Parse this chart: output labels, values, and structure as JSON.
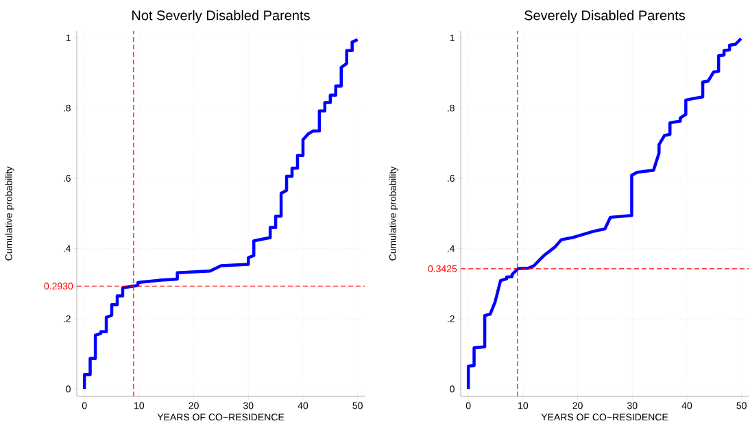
{
  "chart_data": [
    {
      "type": "line",
      "title": "Not Severly Disabled Parents",
      "xlabel": "YEARS OF CO−RESIDENCE",
      "ylabel": "Cumulative probability",
      "xlim": [
        -1.4,
        51.3
      ],
      "xticks": [
        0,
        10,
        20,
        30,
        40,
        50
      ],
      "ylim": [
        -0.021,
        1.02
      ],
      "yticks": [
        0,
        {
          "value": 0.2,
          "label": ".2"
        },
        {
          "value": 0.4,
          "label": ".4"
        },
        {
          "value": 0.6,
          "label": ".6"
        },
        {
          "value": 0.8,
          "label": ".8"
        },
        1
      ],
      "grid": true,
      "series": [
        {
          "color": "#0000ff",
          "x": [
            0,
            0,
            1.05,
            1.05,
            2.0,
            2.0,
            3.0,
            3.0,
            4.0,
            4.0,
            5.0,
            5.0,
            6.0,
            6.0,
            7.0,
            7.0,
            9.8,
            9.8,
            14,
            17,
            17,
            23,
            25,
            30,
            30,
            31,
            31,
            34,
            34,
            35,
            35,
            36,
            36,
            37,
            37,
            38,
            38,
            39,
            39,
            40,
            40,
            41,
            41.9,
            43,
            43,
            44,
            44,
            45,
            45,
            46,
            46,
            47,
            47,
            48,
            48,
            49,
            49,
            50
          ],
          "values": [
            0,
            0.041,
            0.041,
            0.087,
            0.087,
            0.153,
            0.158,
            0.163,
            0.163,
            0.204,
            0.21,
            0.24,
            0.24,
            0.265,
            0.265,
            0.288,
            0.295,
            0.303,
            0.31,
            0.313,
            0.331,
            0.336,
            0.351,
            0.355,
            0.374,
            0.38,
            0.422,
            0.431,
            0.46,
            0.46,
            0.492,
            0.492,
            0.557,
            0.566,
            0.606,
            0.606,
            0.629,
            0.629,
            0.665,
            0.665,
            0.71,
            0.727,
            0.735,
            0.735,
            0.792,
            0.792,
            0.816,
            0.816,
            0.837,
            0.837,
            0.863,
            0.863,
            0.916,
            0.927,
            0.964,
            0.964,
            0.988,
            0.995
          ]
        }
      ],
      "ref_lines": [
        {
          "axis": "x",
          "value": 9,
          "color": "#ff0000",
          "line_style": "dashed"
        },
        {
          "axis": "y",
          "value": 0.293,
          "label": "0.2930",
          "color": "#ff0000",
          "line_style": "dashed"
        }
      ]
    },
    {
      "type": "line",
      "title": "Severely Disabled Parents",
      "xlabel": "YEARS OF CO−RESIDENCE",
      "ylabel": "Cumulative probability",
      "xlim": [
        -1.4,
        51.3
      ],
      "xticks": [
        0,
        10,
        20,
        30,
        40,
        50
      ],
      "ylim": [
        -0.021,
        1.02
      ],
      "yticks": [
        0,
        {
          "value": 0.2,
          "label": ".2"
        },
        {
          "value": 0.4,
          "label": ".4"
        },
        {
          "value": 0.6,
          "label": ".6"
        },
        {
          "value": 0.8,
          "label": ".8"
        },
        1
      ],
      "grid": true,
      "series": [
        {
          "color": "#0000ff",
          "x": [
            0,
            0,
            1.05,
            1.05,
            3.0,
            3.0,
            4.0,
            4.9,
            5.9,
            7.0,
            7.0,
            8.0,
            8.0,
            9.1,
            11,
            12,
            13.9,
            15.9,
            17,
            19,
            22.9,
            25,
            26,
            29.9,
            29.9,
            30.9,
            33.9,
            34.9,
            34.9,
            35.9,
            36.9,
            36.9,
            38.8,
            38.8,
            39.8,
            39.8,
            42.9,
            42.9,
            43.9,
            44.9,
            45.8,
            45.8,
            46.8,
            46.8,
            47.8,
            47.8,
            48.9,
            49.9
          ],
          "values": [
            0,
            0.065,
            0.067,
            0.117,
            0.12,
            0.209,
            0.213,
            0.248,
            0.309,
            0.314,
            0.319,
            0.32,
            0.326,
            0.343,
            0.344,
            0.351,
            0.381,
            0.405,
            0.425,
            0.431,
            0.449,
            0.456,
            0.489,
            0.494,
            0.609,
            0.617,
            0.623,
            0.672,
            0.696,
            0.722,
            0.725,
            0.758,
            0.763,
            0.772,
            0.782,
            0.823,
            0.832,
            0.874,
            0.877,
            0.903,
            0.905,
            0.949,
            0.951,
            0.964,
            0.966,
            0.979,
            0.982,
            0.998
          ]
        }
      ],
      "ref_lines": [
        {
          "axis": "x",
          "value": 9,
          "color": "#ff0000",
          "line_style": "dashed"
        },
        {
          "axis": "y",
          "value": 0.3425,
          "label": "0.3425",
          "color": "#ff0000",
          "line_style": "dashed"
        }
      ]
    }
  ]
}
